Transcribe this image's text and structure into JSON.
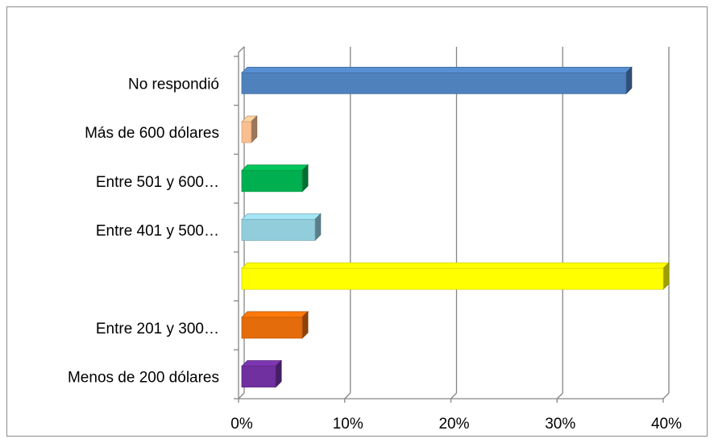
{
  "chart_data": {
    "type": "bar",
    "orientation": "horizontal",
    "style": "3d",
    "categories": [
      "Menos de 200 dólares",
      "Entre 201 y 300…",
      "",
      "Entre 401 y 500…",
      "Entre 501 y 600…",
      "Más de 600 dólares",
      "No respondió"
    ],
    "values": [
      0.035,
      0.06,
      0.4,
      0.072,
      0.06,
      0.012,
      0.365
    ],
    "colors": [
      "#7030a0",
      "#e46c0a",
      "#ffff00",
      "#92cddc",
      "#00b050",
      "#fabf8f",
      "#4f81bd"
    ],
    "xlim": [
      0,
      0.4
    ],
    "xticks": [
      "0%",
      "10%",
      "20%",
      "30%",
      "40%"
    ],
    "grid": true,
    "legend": "none"
  }
}
